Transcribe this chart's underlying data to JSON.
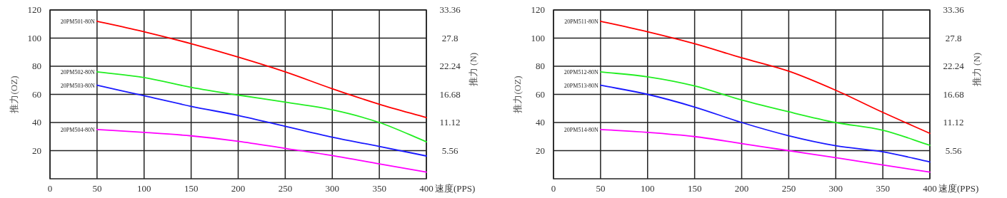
{
  "chart_data": [
    {
      "type": "line",
      "xlabel": "速度(PPS)",
      "ylabel": "推力(OZ)",
      "y2label": "推力 (N)",
      "x": [
        50,
        100,
        150,
        200,
        250,
        300,
        350,
        400
      ],
      "xlim": [
        0,
        400
      ],
      "xticks": [
        0,
        50,
        100,
        150,
        200,
        250,
        300,
        350,
        400
      ],
      "ylim": [
        0,
        120
      ],
      "yticks": [
        20,
        40,
        60,
        80,
        100,
        120
      ],
      "y2lim": [
        0,
        33.36
      ],
      "y2ticks": [
        5.56,
        11.12,
        16.68,
        22.24,
        27.8,
        33.36
      ],
      "grid": true,
      "series": [
        {
          "name": "20PM501-80N",
          "color": "#ff0000",
          "values": [
            112,
            104.5,
            96,
            86.5,
            76,
            64,
            53,
            43.5
          ]
        },
        {
          "name": "20PM502-80N",
          "color": "#22ee22",
          "values": [
            76,
            72,
            65,
            59.5,
            54.5,
            49,
            40,
            26.3
          ]
        },
        {
          "name": "20PM503-80N",
          "color": "#1a1aff",
          "values": [
            66.5,
            59,
            51.5,
            45,
            37.3,
            29.5,
            23,
            16.2
          ]
        },
        {
          "name": "20PM504-80N",
          "color": "#ff00ff",
          "values": [
            35,
            33,
            30.5,
            26.7,
            21.6,
            16.5,
            10.6,
            4.7
          ]
        }
      ]
    },
    {
      "type": "line",
      "xlabel": "速度(PPS)",
      "ylabel": "推力(OZ)",
      "y2label": "推力 (N)",
      "x": [
        50,
        100,
        150,
        200,
        250,
        300,
        350,
        400
      ],
      "xlim": [
        0,
        400
      ],
      "xticks": [
        0,
        50,
        100,
        150,
        200,
        250,
        300,
        350,
        400
      ],
      "ylim": [
        0,
        120
      ],
      "yticks": [
        20,
        40,
        60,
        80,
        100,
        120
      ],
      "y2lim": [
        0,
        33.36
      ],
      "y2ticks": [
        5.56,
        11.12,
        16.68,
        22.24,
        27.8,
        33.36
      ],
      "grid": true,
      "series": [
        {
          "name": "20PM511-80N",
          "color": "#ff0000",
          "values": [
            112,
            104.5,
            96,
            86,
            76.5,
            62.9,
            47.2,
            32.3
          ]
        },
        {
          "name": "20PM512-80N",
          "color": "#22ee22",
          "values": [
            76,
            72.5,
            66,
            56,
            47.6,
            40,
            34.5,
            23.8
          ]
        },
        {
          "name": "20PM513-80N",
          "color": "#1a1aff",
          "values": [
            66.5,
            60,
            51,
            40,
            30.6,
            23.5,
            19.2,
            12
          ]
        },
        {
          "name": "20PM514-80N",
          "color": "#ff00ff",
          "values": [
            35,
            33,
            30,
            25,
            20,
            15,
            9.8,
            4.7
          ]
        }
      ]
    }
  ]
}
